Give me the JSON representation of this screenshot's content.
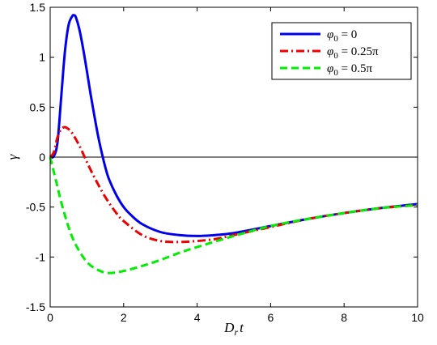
{
  "chart_data": {
    "type": "line",
    "title": "",
    "xlabel": "D_r t",
    "ylabel": "γ",
    "xlim": [
      0,
      10
    ],
    "ylim": [
      -1.5,
      1.5
    ],
    "xticks": [
      0,
      2,
      4,
      6,
      8,
      10
    ],
    "xtick_labels": [
      "0",
      "2",
      "4",
      "6",
      "8",
      "10"
    ],
    "yticks": [
      -1.5,
      -1,
      -0.5,
      0,
      0.5,
      1,
      1.5
    ],
    "ytick_labels": [
      "-1.5",
      "-1",
      "-0.5",
      "0",
      "0.5",
      "1",
      "1.5"
    ],
    "grid": false,
    "legend_position": "top-right",
    "reference_line_y": 0,
    "series": [
      {
        "name": "φ0 = 0",
        "legend": {
          "main": "φ",
          "sub": "0",
          "rest": " = 0"
        },
        "color": "#0000ee",
        "dash": "solid",
        "x": [
          0,
          0.1,
          0.2,
          0.3,
          0.4,
          0.5,
          0.6,
          0.65,
          0.7,
          0.8,
          0.9,
          1.0,
          1.1,
          1.2,
          1.3,
          1.4,
          1.5,
          1.6,
          1.8,
          2.0,
          2.2,
          2.5,
          3.0,
          3.5,
          4.0,
          4.5,
          5.0,
          6.0,
          7.0,
          8.0,
          9.0,
          10.0
        ],
        "y": [
          0,
          0.01,
          0.15,
          0.6,
          1.05,
          1.32,
          1.41,
          1.42,
          1.4,
          1.27,
          1.08,
          0.86,
          0.63,
          0.42,
          0.22,
          0.05,
          -0.1,
          -0.22,
          -0.38,
          -0.5,
          -0.58,
          -0.67,
          -0.75,
          -0.78,
          -0.79,
          -0.78,
          -0.76,
          -0.69,
          -0.62,
          -0.56,
          -0.51,
          -0.47
        ]
      },
      {
        "name": "φ0 = 0.25π",
        "legend": {
          "main": "φ",
          "sub": "0",
          "rest": " = 0.25π"
        },
        "color": "#ee0000",
        "dash": "dashdot",
        "x": [
          0,
          0.1,
          0.2,
          0.3,
          0.4,
          0.5,
          0.6,
          0.8,
          1.0,
          1.2,
          1.5,
          1.8,
          2.0,
          2.5,
          3.0,
          3.5,
          4.0,
          4.5,
          5.0,
          6.0,
          7.0,
          8.0,
          9.0,
          10.0
        ],
        "y": [
          0,
          0.05,
          0.2,
          0.28,
          0.3,
          0.28,
          0.24,
          0.11,
          -0.05,
          -0.2,
          -0.4,
          -0.56,
          -0.64,
          -0.78,
          -0.84,
          -0.85,
          -0.84,
          -0.82,
          -0.78,
          -0.7,
          -0.62,
          -0.56,
          -0.51,
          -0.48
        ]
      },
      {
        "name": "φ0 = 0.5π",
        "legend": {
          "main": "φ",
          "sub": "0",
          "rest": " = 0.5π"
        },
        "color": "#00ee00",
        "dash": "dashed",
        "x": [
          0,
          0.1,
          0.2,
          0.3,
          0.5,
          0.7,
          1.0,
          1.3,
          1.6,
          2.0,
          2.5,
          3.0,
          3.5,
          4.0,
          5.0,
          6.0,
          7.0,
          8.0,
          9.0,
          10.0
        ],
        "y": [
          0,
          -0.15,
          -0.3,
          -0.45,
          -0.7,
          -0.88,
          -1.05,
          -1.13,
          -1.16,
          -1.14,
          -1.09,
          -1.03,
          -0.96,
          -0.9,
          -0.79,
          -0.69,
          -0.62,
          -0.56,
          -0.51,
          -0.48
        ]
      }
    ]
  }
}
